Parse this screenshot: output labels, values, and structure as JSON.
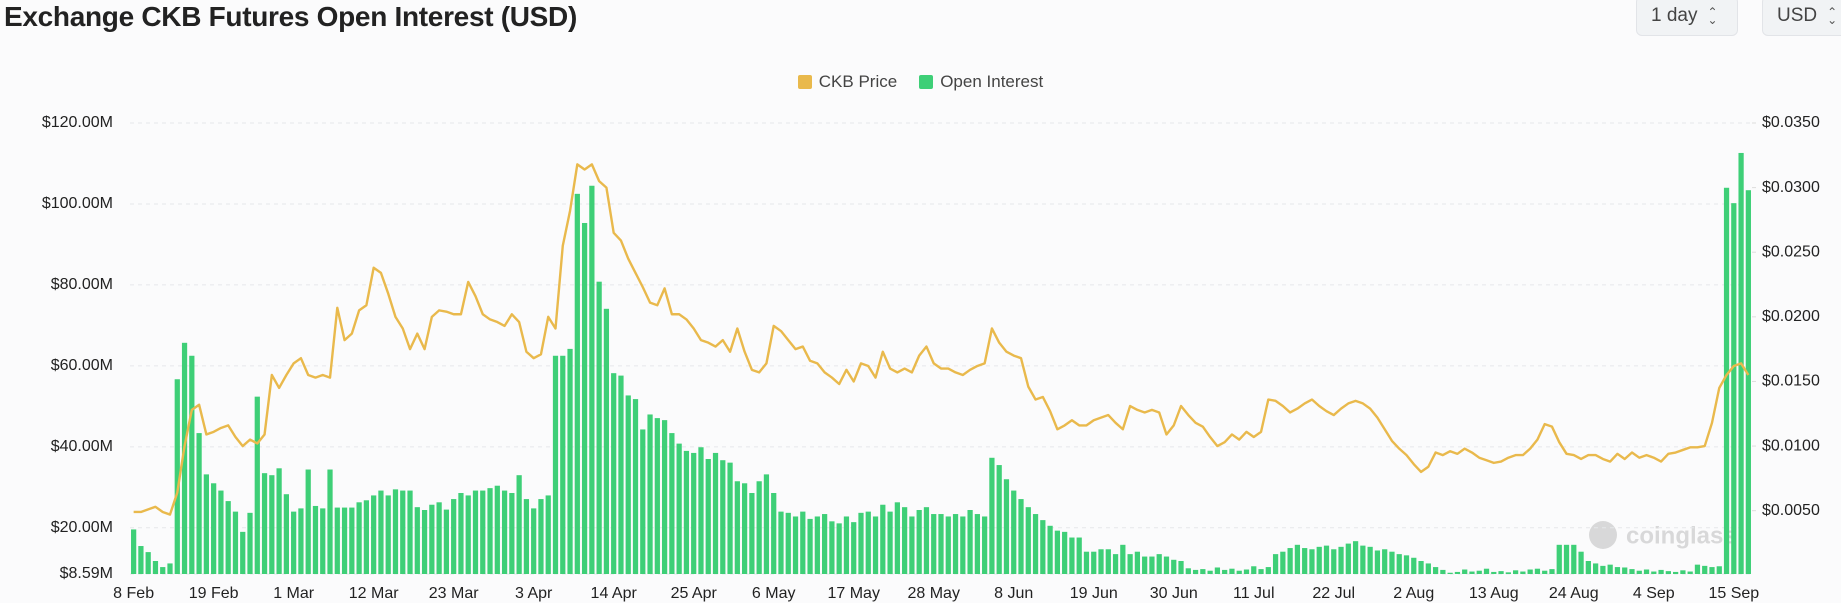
{
  "controls": [
    "1 day",
    "USD"
  ],
  "chart_data": {
    "type": "combo",
    "title": "Exchange CKB Futures Open Interest (USD)",
    "watermark": "coinglass",
    "grid": true,
    "categories": [
      "8 Feb",
      null,
      null,
      null,
      null,
      null,
      null,
      null,
      null,
      null,
      null,
      "19 Feb",
      null,
      null,
      null,
      null,
      null,
      null,
      null,
      null,
      null,
      null,
      "1 Mar",
      null,
      null,
      null,
      null,
      null,
      null,
      null,
      null,
      null,
      null,
      "12 Mar",
      null,
      null,
      null,
      null,
      null,
      null,
      null,
      null,
      null,
      null,
      "23 Mar",
      null,
      null,
      null,
      null,
      null,
      null,
      null,
      null,
      null,
      null,
      "3 Apr",
      null,
      null,
      null,
      null,
      null,
      null,
      null,
      null,
      null,
      null,
      "14 Apr",
      null,
      null,
      null,
      null,
      null,
      null,
      null,
      null,
      null,
      null,
      "25 Apr",
      null,
      null,
      null,
      null,
      null,
      null,
      null,
      null,
      null,
      null,
      "6 May",
      null,
      null,
      null,
      null,
      null,
      null,
      null,
      null,
      null,
      null,
      "17 May",
      null,
      null,
      null,
      null,
      null,
      null,
      null,
      null,
      null,
      null,
      "28 May",
      null,
      null,
      null,
      null,
      null,
      null,
      null,
      null,
      null,
      null,
      "8 Jun",
      null,
      null,
      null,
      null,
      null,
      null,
      null,
      null,
      null,
      null,
      "19 Jun",
      null,
      null,
      null,
      null,
      null,
      null,
      null,
      null,
      null,
      null,
      "30 Jun",
      null,
      null,
      null,
      null,
      null,
      null,
      null,
      null,
      null,
      null,
      "11 Jul",
      null,
      null,
      null,
      null,
      null,
      null,
      null,
      null,
      null,
      null,
      "22 Jul",
      null,
      null,
      null,
      null,
      null,
      null,
      null,
      null,
      null,
      null,
      "2 Aug",
      null,
      null,
      null,
      null,
      null,
      null,
      null,
      null,
      null,
      null,
      "13 Aug",
      null,
      null,
      null,
      null,
      null,
      null,
      null,
      null,
      null,
      null,
      "24 Aug",
      null,
      null,
      null,
      null,
      null,
      null,
      null,
      null,
      null,
      null,
      "4 Sep",
      null,
      null,
      null,
      null,
      null,
      null,
      null,
      null,
      null,
      null,
      "15 Sep",
      null,
      null
    ],
    "ylim": [
      8.59,
      120
    ],
    "yticks": [
      {
        "value": 8.59,
        "label": "$8.59M"
      },
      {
        "value": 20,
        "label": "$20.00M"
      },
      {
        "value": 40,
        "label": "$40.00M"
      },
      {
        "value": 60,
        "label": "$60.00M"
      },
      {
        "value": 80,
        "label": "$80.00M"
      },
      {
        "value": 100,
        "label": "$100.00M"
      },
      {
        "value": 120,
        "label": "$120.00M"
      }
    ],
    "y2lim": [
      0.0001,
      0.035
    ],
    "y2ticks": [
      {
        "value": 0.005,
        "label": "$0.0050"
      },
      {
        "value": 0.01,
        "label": "$0.0100"
      },
      {
        "value": 0.015,
        "label": "$0.0150"
      },
      {
        "value": 0.02,
        "label": "$0.0200"
      },
      {
        "value": 0.025,
        "label": "$0.0250"
      },
      {
        "value": 0.03,
        "label": "$0.0300"
      },
      {
        "value": 0.035,
        "label": "$0.0350"
      }
    ],
    "series": [
      {
        "name": "CKB Price",
        "type": "line",
        "axis": "y2",
        "color": "#e9b94c",
        "values": [
          0.0049,
          0.0049,
          0.0051,
          0.0053,
          0.0049,
          0.0047,
          0.0064,
          0.01,
          0.0128,
          0.0132,
          0.0109,
          0.0111,
          0.0114,
          0.0116,
          0.0107,
          0.01,
          0.0105,
          0.0102,
          0.0109,
          0.0155,
          0.0145,
          0.0155,
          0.0164,
          0.0168,
          0.0155,
          0.0153,
          0.0155,
          0.0153,
          0.0207,
          0.0182,
          0.0187,
          0.0205,
          0.0209,
          0.0238,
          0.0234,
          0.0218,
          0.02,
          0.0191,
          0.0175,
          0.0187,
          0.0175,
          0.02,
          0.0205,
          0.0204,
          0.0202,
          0.0202,
          0.0227,
          0.0216,
          0.0202,
          0.0198,
          0.0196,
          0.0193,
          0.0202,
          0.0196,
          0.0173,
          0.0168,
          0.0171,
          0.02,
          0.0191,
          0.0255,
          0.0282,
          0.0318,
          0.0314,
          0.0318,
          0.0305,
          0.03,
          0.0265,
          0.0259,
          0.0245,
          0.0234,
          0.0223,
          0.0211,
          0.0209,
          0.0222,
          0.0202,
          0.0202,
          0.0198,
          0.0191,
          0.0182,
          0.018,
          0.0177,
          0.0182,
          0.0173,
          0.0191,
          0.0173,
          0.0159,
          0.0157,
          0.0164,
          0.0193,
          0.0189,
          0.0182,
          0.0175,
          0.0177,
          0.0166,
          0.0164,
          0.0157,
          0.0153,
          0.0148,
          0.0159,
          0.015,
          0.0164,
          0.0162,
          0.0153,
          0.0173,
          0.016,
          0.0157,
          0.016,
          0.0157,
          0.017,
          0.0177,
          0.0164,
          0.016,
          0.016,
          0.0157,
          0.0155,
          0.0159,
          0.0162,
          0.0164,
          0.0191,
          0.018,
          0.0173,
          0.017,
          0.0168,
          0.0146,
          0.0136,
          0.0138,
          0.0127,
          0.0113,
          0.0116,
          0.012,
          0.0116,
          0.0116,
          0.012,
          0.0122,
          0.0124,
          0.0118,
          0.0113,
          0.0131,
          0.0128,
          0.0126,
          0.0128,
          0.0126,
          0.0109,
          0.0116,
          0.0131,
          0.0124,
          0.0118,
          0.0115,
          0.0107,
          0.01,
          0.0103,
          0.0109,
          0.0105,
          0.0111,
          0.0107,
          0.0111,
          0.0136,
          0.0135,
          0.0131,
          0.0126,
          0.0129,
          0.0133,
          0.0136,
          0.0131,
          0.0127,
          0.0124,
          0.0129,
          0.0133,
          0.0135,
          0.0133,
          0.0129,
          0.0122,
          0.0113,
          0.0104,
          0.0098,
          0.0093,
          0.0086,
          0.008,
          0.0084,
          0.0095,
          0.0093,
          0.0096,
          0.0094,
          0.0098,
          0.0095,
          0.0091,
          0.0089,
          0.0087,
          0.0088,
          0.0091,
          0.0093,
          0.0093,
          0.0098,
          0.0105,
          0.0117,
          0.0115,
          0.0103,
          0.0094,
          0.0093,
          0.009,
          0.0093,
          0.0093,
          0.009,
          0.0088,
          0.0094,
          0.009,
          0.0095,
          0.0091,
          0.0093,
          0.0091,
          0.0088,
          0.0094,
          0.0095,
          0.0097,
          0.0099,
          0.0099,
          0.01,
          0.0118,
          0.0145,
          0.0155,
          0.0162,
          0.0164,
          0.0155
        ]
      },
      {
        "name": "Open Interest",
        "type": "bar",
        "axis": "y",
        "color": "#3ecf77",
        "values": [
          19.6,
          15.5,
          14,
          11.8,
          10.3,
          11.2,
          56.7,
          65.7,
          62.5,
          43.4,
          33.2,
          31,
          29.2,
          26.6,
          24,
          19,
          23.7,
          52.4,
          33.5,
          33,
          34.7,
          28.3,
          24,
          24.8,
          34.4,
          25.4,
          24.8,
          34.4,
          25,
          25,
          25,
          26.3,
          26.8,
          28,
          29.2,
          28,
          29.5,
          29.2,
          29.2,
          25.1,
          24.4,
          25.7,
          26.3,
          24.5,
          27.1,
          28.6,
          28,
          29.2,
          29.2,
          29.8,
          30.4,
          29.2,
          28.6,
          33,
          27.1,
          24.8,
          27.1,
          28,
          62.5,
          62.5,
          64.2,
          102.5,
          95.3,
          104.5,
          80.8,
          74.1,
          58.2,
          57.6,
          52.7,
          51.8,
          44.3,
          48,
          47.1,
          46.6,
          43.4,
          40.8,
          39,
          38.5,
          39.9,
          37,
          38.5,
          36.7,
          36.1,
          31.5,
          31,
          28.6,
          31.5,
          33.2,
          28.6,
          24,
          23.7,
          22.8,
          24,
          22.2,
          22.8,
          23.4,
          21.6,
          21.1,
          22.8,
          21.4,
          23.7,
          24,
          22.8,
          25.7,
          24,
          26.3,
          25.1,
          22.8,
          24.4,
          25.1,
          23.4,
          23.4,
          22.8,
          23.4,
          22.8,
          24.4,
          23.4,
          22.8,
          37.3,
          35.5,
          32,
          29.2,
          27.1,
          25.1,
          23.4,
          21.9,
          20.5,
          19.3,
          19,
          17.6,
          17.6,
          14.1,
          14.1,
          14.7,
          14.7,
          13.5,
          15.8,
          13.5,
          14.1,
          12.9,
          12.9,
          13.5,
          12.9,
          12.1,
          11.8,
          10,
          9.6,
          9.8,
          9.4,
          10.2,
          9.6,
          9.9,
          9.4,
          9.7,
          10.5,
          9.8,
          10.3,
          13.5,
          14.1,
          15,
          15.8,
          15,
          14.7,
          15.3,
          15.6,
          14.7,
          15.3,
          16.1,
          16.7,
          15.6,
          15.3,
          14.4,
          14.7,
          14.1,
          13.5,
          13.2,
          12.6,
          11.8,
          11.2,
          10.3,
          9.6,
          8.9,
          9.1,
          9.7,
          9.2,
          9.4,
          9.9,
          9.1,
          9.3,
          9.0,
          9.5,
          9.2,
          9.7,
          9.9,
          9.4,
          9.8,
          15.8,
          15.8,
          15.8,
          14.1,
          11.8,
          11.2,
          10.6,
          10.9,
          10.3,
          10.2,
          9.8,
          9.4,
          9.7,
          9.2,
          9.6,
          9.3,
          9.1,
          9.5,
          9.2,
          10.9,
          10.6,
          10.3,
          10.5,
          104,
          100.2,
          112.6,
          103.4
        ]
      }
    ]
  }
}
